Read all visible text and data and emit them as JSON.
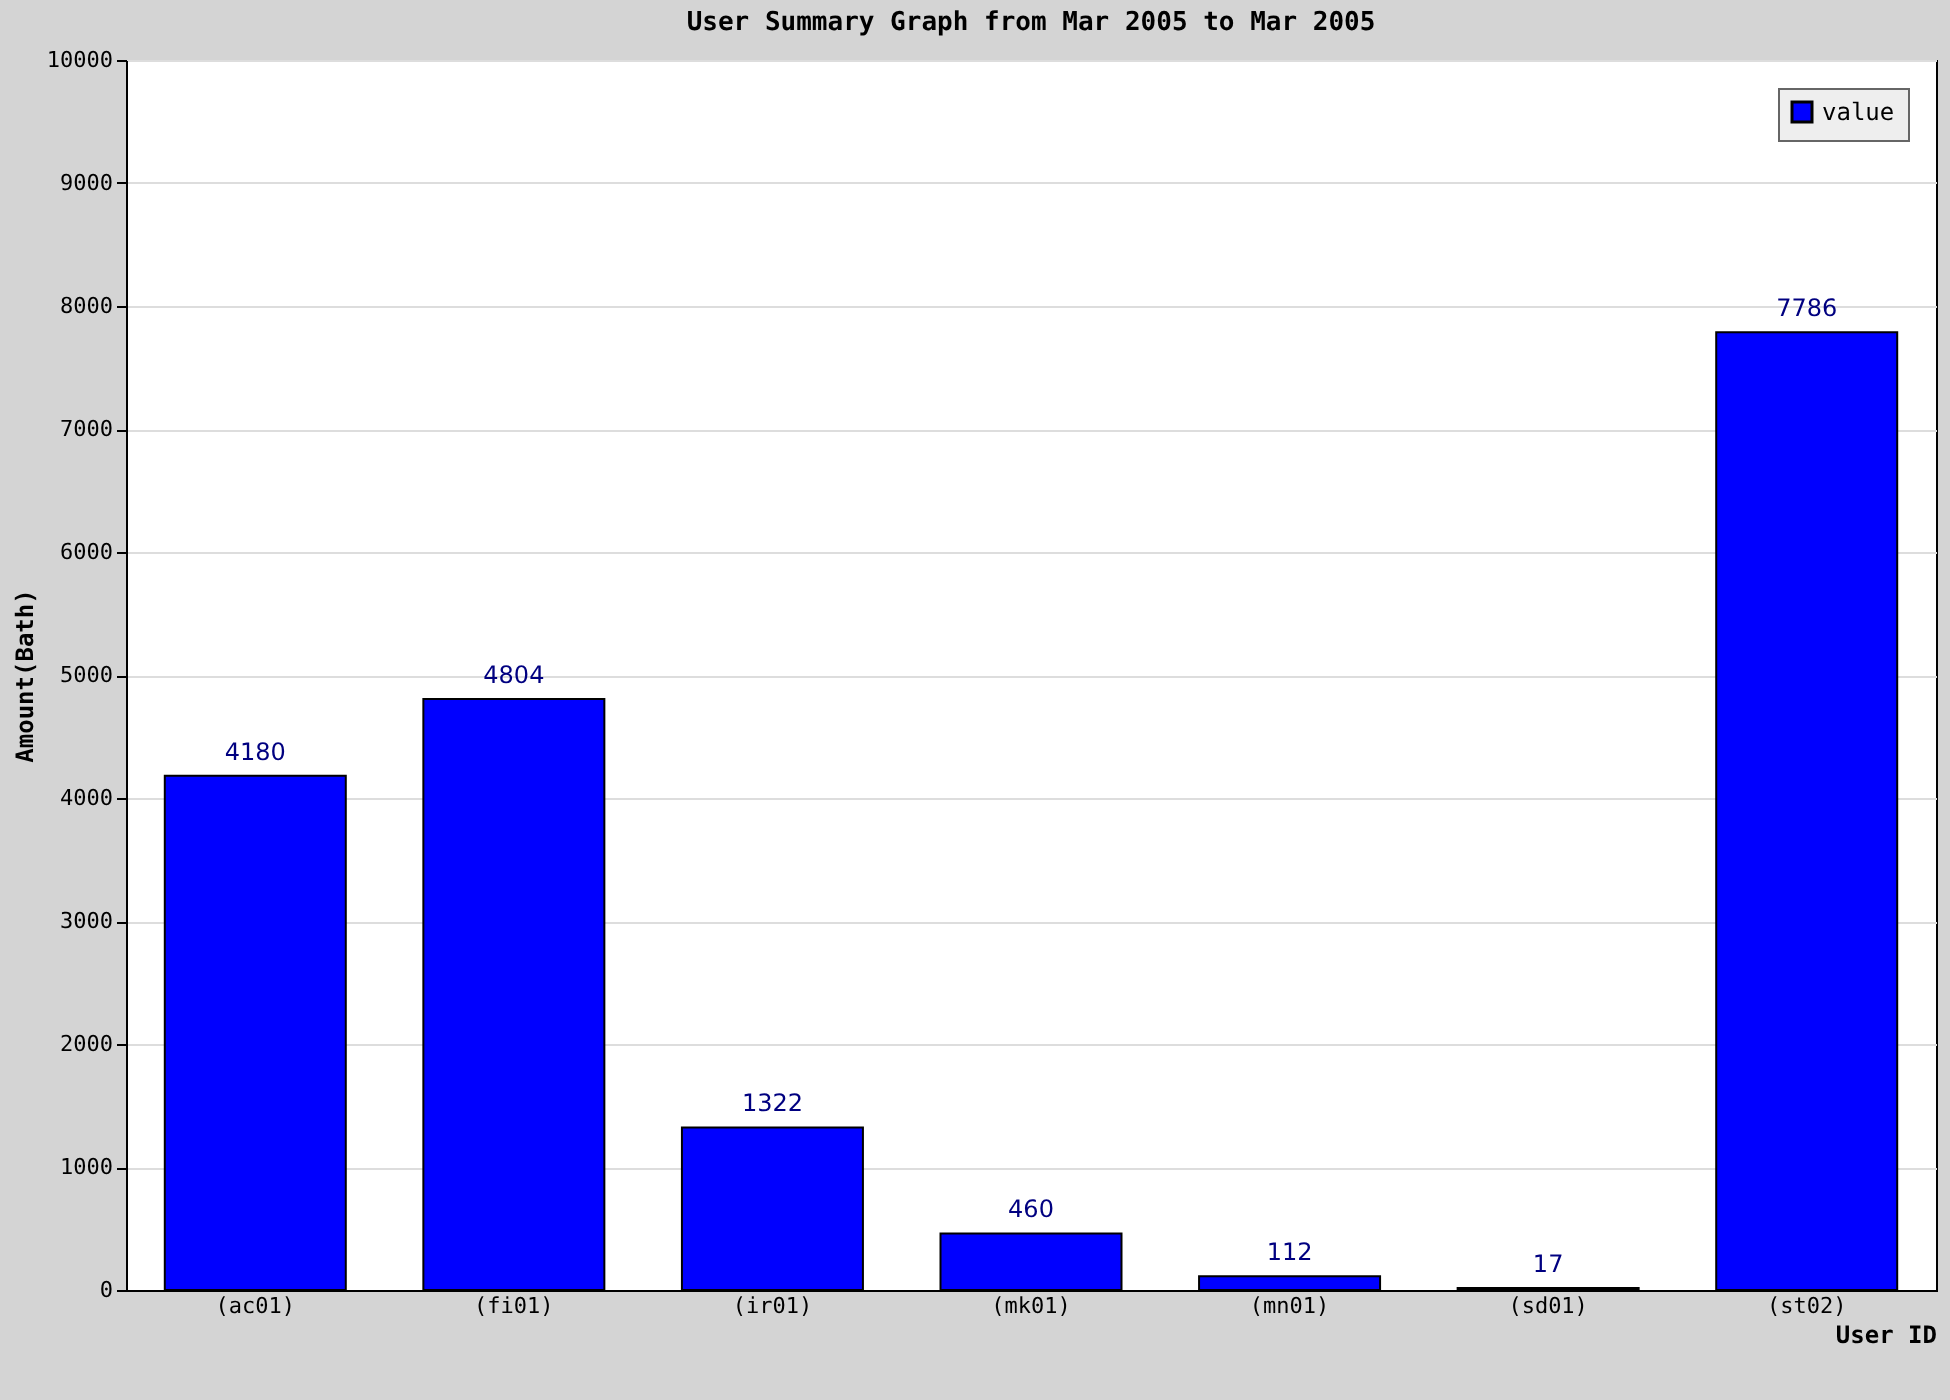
{
  "chart_data": {
    "type": "bar",
    "title": "User  Summary Graph from Mar 2005 to Mar 2005",
    "xlabel": "User  ID",
    "ylabel": "Amount(Bath)",
    "categories": [
      "(ac01)",
      "(fi01)",
      "(ir01)",
      "(mk01)",
      "(mn01)",
      "(sd01)",
      "(st02)"
    ],
    "series": [
      {
        "name": "value",
        "color": "#0000ff",
        "values": [
          4180,
          4804,
          1322,
          460,
          112,
          17,
          7786
        ]
      }
    ],
    "ylim": [
      0,
      10000
    ],
    "yticks": [
      0,
      1000,
      2000,
      3000,
      4000,
      5000,
      6000,
      7000,
      8000,
      9000,
      10000
    ],
    "grid": "y",
    "legend": "top right",
    "data_labels": true
  }
}
